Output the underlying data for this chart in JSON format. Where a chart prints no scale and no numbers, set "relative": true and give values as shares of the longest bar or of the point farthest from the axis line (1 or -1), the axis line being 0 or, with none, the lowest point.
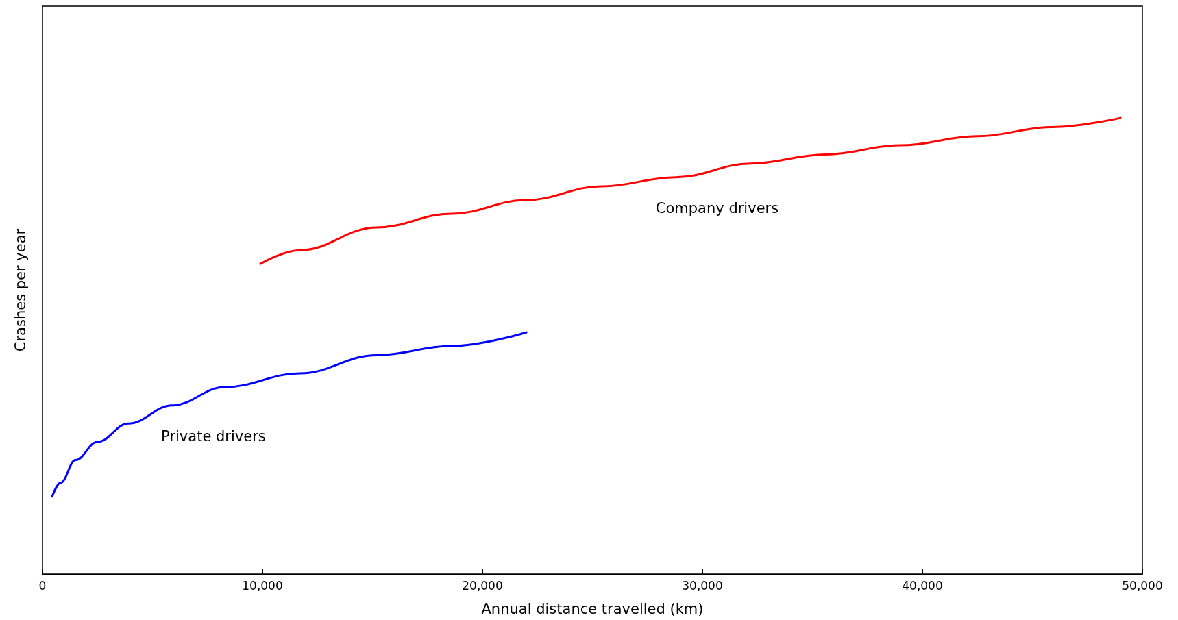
{
  "chart_data": {
    "type": "line",
    "relative": true,
    "xlabel": "Annual distance travelled (km)",
    "ylabel": "Crashes per year",
    "xlim": [
      0,
      50000
    ],
    "xticks": [
      0,
      {
        "value": 10000,
        "label": "10,000"
      },
      {
        "value": 20000,
        "label": "20,000"
      },
      {
        "value": 30000,
        "label": "30,000"
      },
      {
        "value": 40000,
        "label": "40,000"
      },
      {
        "value": 50000,
        "label": "50,000"
      }
    ],
    "series": [
      {
        "name": "Private drivers",
        "color": "#0000ff",
        "x": [
          440,
          820,
          1500,
          2500,
          3900,
          5900,
          8300,
          11700,
          15200,
          18600,
          22000
        ],
        "values": [
          0.17,
          0.2,
          0.25,
          0.29,
          0.33,
          0.37,
          0.41,
          0.44,
          0.48,
          0.5,
          0.53
        ]
      },
      {
        "name": "Company drivers",
        "color": "#ff0000",
        "x": [
          9900,
          11700,
          15200,
          18600,
          22000,
          25400,
          28800,
          32200,
          35600,
          39000,
          42500,
          45900,
          49000
        ],
        "values": [
          0.68,
          0.71,
          0.76,
          0.79,
          0.82,
          0.85,
          0.87,
          0.9,
          0.92,
          0.94,
          0.96,
          0.98,
          1.0
        ]
      }
    ],
    "grid": false,
    "marker": "none",
    "line_style": "solid"
  }
}
